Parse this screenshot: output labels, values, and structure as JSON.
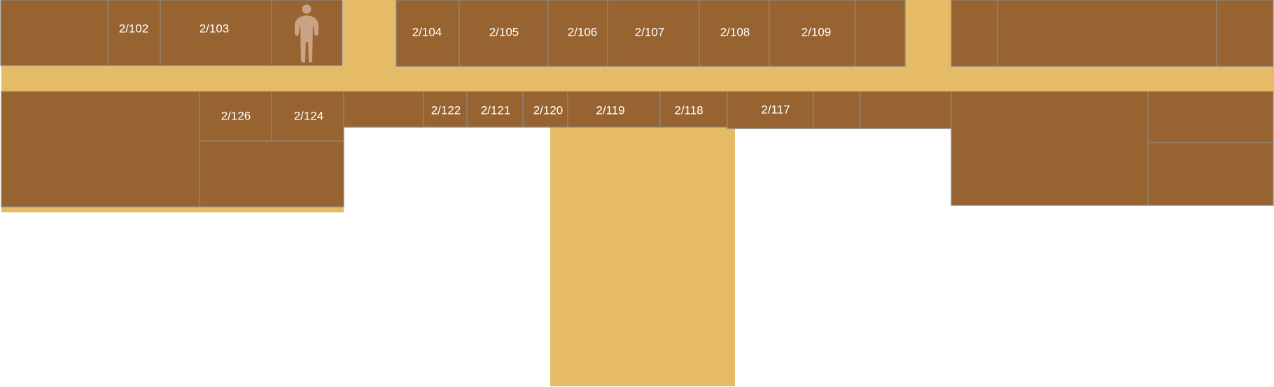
{
  "map": {
    "colors": {
      "corridor": "#e6bb67",
      "room": "#976431",
      "room_border": "#8a8a86",
      "room_label": "#ffffff",
      "marker": "#c9a384"
    },
    "location_marker": {
      "icon": "person-icon",
      "room": "room-you-are-here"
    },
    "labels": {
      "r102": "2/102",
      "r103": "2/103",
      "r104": "2/104",
      "r105": "2/105",
      "r106": "2/106",
      "r107": "2/107",
      "r108": "2/108",
      "r109": "2/109",
      "r117": "2/117",
      "r118": "2/118",
      "r119": "2/119",
      "r120": "2/120",
      "r121": "2/121",
      "r122": "2/122",
      "r124": "2/124",
      "r126": "2/126"
    }
  }
}
